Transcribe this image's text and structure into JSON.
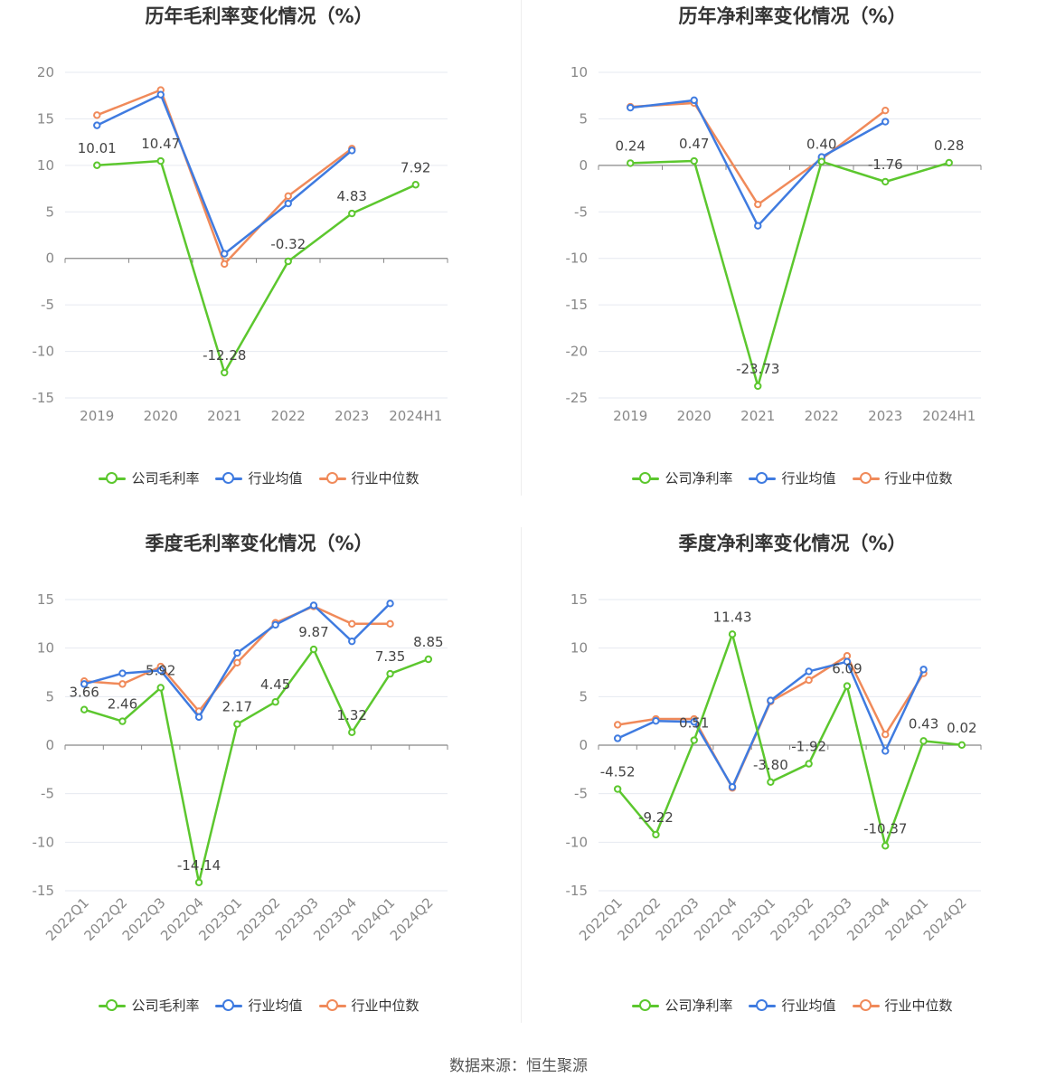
{
  "source": "数据来源：恒生聚源",
  "colors": {
    "company": "#5cc72e",
    "avg": "#3f7be0",
    "median": "#f08a5a"
  },
  "chart_data": [
    {
      "type": "line",
      "title": "历年毛利率变化情况（%）",
      "categories": [
        "2019",
        "2020",
        "2021",
        "2022",
        "2023",
        "2024H1"
      ],
      "ylim": [
        -15,
        20
      ],
      "yticks": [
        20,
        15,
        10,
        5,
        0,
        -5,
        -10,
        -15
      ],
      "rotate_x": false,
      "series": [
        {
          "name": "公司毛利率",
          "key": "company",
          "values": [
            10.01,
            10.47,
            -12.28,
            -0.32,
            4.83,
            7.92
          ],
          "labels": [
            "10.01",
            "10.47",
            "-12.28",
            "-0.32",
            "4.83",
            "7.92"
          ]
        },
        {
          "name": "行业均值",
          "key": "avg",
          "values": [
            14.3,
            17.6,
            0.5,
            5.9,
            11.6,
            null
          ]
        },
        {
          "name": "行业中位数",
          "key": "median",
          "values": [
            15.4,
            18.1,
            -0.6,
            6.7,
            11.8,
            null
          ]
        }
      ]
    },
    {
      "type": "line",
      "title": "历年净利率变化情况（%）",
      "categories": [
        "2019",
        "2020",
        "2021",
        "2022",
        "2023",
        "2024H1"
      ],
      "ylim": [
        -25,
        10
      ],
      "yticks": [
        10,
        5,
        0,
        -5,
        -10,
        -15,
        -20,
        -25
      ],
      "rotate_x": false,
      "series": [
        {
          "name": "公司净利率",
          "key": "company",
          "values": [
            0.24,
            0.47,
            -23.73,
            0.4,
            -1.76,
            0.28
          ],
          "labels": [
            "0.24",
            "0.47",
            "-23.73",
            "0.40",
            "-1.76",
            "0.28"
          ]
        },
        {
          "name": "行业均值",
          "key": "avg",
          "values": [
            6.2,
            7.0,
            -6.5,
            0.9,
            4.7,
            null
          ]
        },
        {
          "name": "行业中位数",
          "key": "median",
          "values": [
            6.3,
            6.7,
            -4.2,
            0.7,
            5.9,
            null
          ]
        }
      ]
    },
    {
      "type": "line",
      "title": "季度毛利率变化情况（%）",
      "categories": [
        "2022Q1",
        "2022Q2",
        "2022Q3",
        "2022Q4",
        "2023Q1",
        "2023Q2",
        "2023Q3",
        "2023Q4",
        "2024Q1",
        "2024Q2"
      ],
      "ylim": [
        -15,
        15
      ],
      "yticks": [
        15,
        10,
        5,
        0,
        -5,
        -10,
        -15
      ],
      "rotate_x": true,
      "series": [
        {
          "name": "公司毛利率",
          "key": "company",
          "values": [
            3.66,
            2.46,
            5.92,
            -14.14,
            2.17,
            4.45,
            9.87,
            1.32,
            7.35,
            8.85
          ],
          "labels": [
            "3.66",
            "2.46",
            "5.92",
            "-14.14",
            "2.17",
            "4.45",
            "9.87",
            "1.32",
            "7.35",
            "8.85"
          ]
        },
        {
          "name": "行业均值",
          "key": "avg",
          "values": [
            6.3,
            7.4,
            7.7,
            2.9,
            9.5,
            12.4,
            14.4,
            10.7,
            14.6,
            null
          ]
        },
        {
          "name": "行业中位数",
          "key": "median",
          "values": [
            6.6,
            6.3,
            8.1,
            3.5,
            8.5,
            12.6,
            14.3,
            12.5,
            12.5,
            null
          ]
        }
      ]
    },
    {
      "type": "line",
      "title": "季度净利率变化情况（%）",
      "categories": [
        "2022Q1",
        "2022Q2",
        "2022Q3",
        "2022Q4",
        "2023Q1",
        "2023Q2",
        "2023Q3",
        "2023Q4",
        "2024Q1",
        "2024Q2"
      ],
      "ylim": [
        -15,
        15
      ],
      "yticks": [
        15,
        10,
        5,
        0,
        -5,
        -10,
        -15
      ],
      "rotate_x": true,
      "series": [
        {
          "name": "公司净利率",
          "key": "company",
          "values": [
            -4.52,
            -9.22,
            0.51,
            11.43,
            -3.8,
            -1.92,
            6.09,
            -10.37,
            0.43,
            0.02
          ],
          "labels": [
            "-4.52",
            "-9.22",
            "0.51",
            "11.43",
            "-3.80",
            "-1.92",
            "6.09",
            "-10.37",
            "0.43",
            "0.02"
          ]
        },
        {
          "name": "行业均值",
          "key": "avg",
          "values": [
            0.7,
            2.5,
            2.4,
            -4.3,
            4.6,
            7.6,
            8.6,
            -0.6,
            7.8,
            null
          ]
        },
        {
          "name": "行业中位数",
          "key": "median",
          "values": [
            2.1,
            2.7,
            2.7,
            -4.4,
            4.5,
            6.7,
            9.2,
            1.1,
            7.4,
            null
          ]
        }
      ]
    }
  ]
}
